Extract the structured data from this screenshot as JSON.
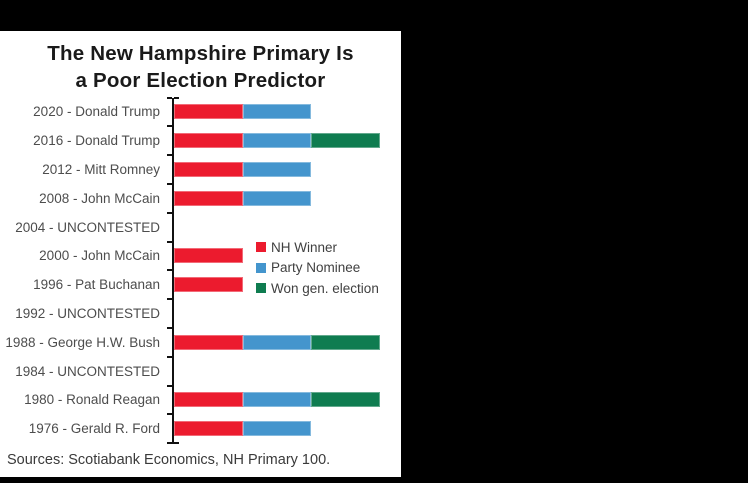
{
  "title": {
    "line1": "The New Hampshire Primary Is",
    "line2": "a Poor Election Predictor"
  },
  "source": "Sources: Scotiabank Economics, NH Primary 100.",
  "colors": {
    "nh_winner": "#EC1B2E",
    "party_nominee": "#4495CD",
    "won_general": "#0F7C50",
    "panel_background": "#FFFFFF",
    "canvas_background": "#000000",
    "axis": "#111111"
  },
  "legend": {
    "items": [
      {
        "label": "NH Winner",
        "color": "#EC1B2E"
      },
      {
        "label": "Party Nominee",
        "color": "#4495CD"
      },
      {
        "label": "Won gen. election",
        "color": "#0F7C50"
      }
    ]
  },
  "chart_data": {
    "type": "bar",
    "orientation": "horizontal",
    "stacked": true,
    "title": "The New Hampshire Primary Is a Poor Election Predictor",
    "xlabel": "",
    "ylabel": "",
    "grid": false,
    "legend_position": "inside-center-right",
    "categories": [
      "2020 - Donald Trump",
      "2016 - Donald Trump",
      "2012 - Mitt Romney",
      "2008 - John McCain",
      "2004 - UNCONTESTED",
      "2000 - John McCain",
      "1996 - Pat Buchanan",
      "1992 - UNCONTESTED",
      "1988 - George H.W. Bush",
      "1984 - UNCONTESTED",
      "1980 - Ronald Reagan",
      "1976 - Gerald R. Ford"
    ],
    "series": [
      {
        "name": "NH Winner",
        "color": "#EC1B2E",
        "values": [
          1,
          1,
          1,
          1,
          0,
          1,
          1,
          0,
          1,
          0,
          1,
          1
        ]
      },
      {
        "name": "Party Nominee",
        "color": "#4495CD",
        "values": [
          1,
          1,
          1,
          1,
          0,
          0,
          0,
          0,
          1,
          0,
          1,
          1
        ]
      },
      {
        "name": "Won gen. election",
        "color": "#0F7C50",
        "values": [
          0,
          1,
          0,
          0,
          0,
          0,
          0,
          0,
          1,
          0,
          1,
          0
        ]
      }
    ]
  }
}
